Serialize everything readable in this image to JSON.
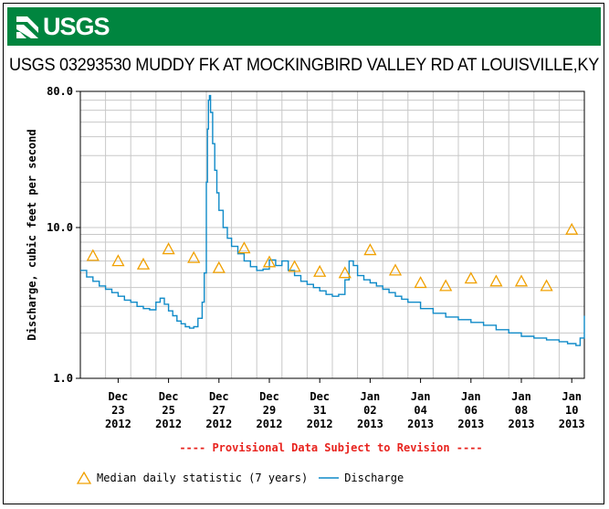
{
  "header": {
    "logo_text": "USGS",
    "logo_icon": "usgs-wave-icon",
    "banner_color": "#00853f"
  },
  "station_title": "USGS 03293530 MUDDY FK AT MOCKINGBIRD VALLEY RD AT LOUISVILLE,KY",
  "provisional_note": "---- Provisional Data Subject to Revision ----",
  "chart_data": {
    "type": "line",
    "title": "USGS 03293530 MUDDY FK AT MOCKINGBIRD VALLEY RD AT LOUISVILLE,KY",
    "ylabel": "Discharge, cubic feet per second",
    "xlabel": "",
    "yscale": "log",
    "ylim": [
      1.0,
      80.0
    ],
    "y_ticks": [
      {
        "value": 1.0,
        "label": "1.0"
      },
      {
        "value": 10.0,
        "label": "10.0"
      },
      {
        "value": 80.0,
        "label": "80.0"
      }
    ],
    "xlim": [
      "2012-12-22",
      "2013-01-11"
    ],
    "x_ticks": [
      {
        "date": "2012-12-23",
        "label1": "Dec",
        "label2": "23",
        "label3": "2012"
      },
      {
        "date": "2012-12-25",
        "label1": "Dec",
        "label2": "25",
        "label3": "2012"
      },
      {
        "date": "2012-12-27",
        "label1": "Dec",
        "label2": "27",
        "label3": "2012"
      },
      {
        "date": "2012-12-29",
        "label1": "Dec",
        "label2": "29",
        "label3": "2012"
      },
      {
        "date": "2012-12-31",
        "label1": "Dec",
        "label2": "31",
        "label3": "2012"
      },
      {
        "date": "2013-01-02",
        "label1": "Jan",
        "label2": "02",
        "label3": "2013"
      },
      {
        "date": "2013-01-04",
        "label1": "Jan",
        "label2": "04",
        "label3": "2013"
      },
      {
        "date": "2013-01-06",
        "label1": "Jan",
        "label2": "06",
        "label3": "2013"
      },
      {
        "date": "2013-01-08",
        "label1": "Jan",
        "label2": "08",
        "label3": "2013"
      },
      {
        "date": "2013-01-10",
        "label1": "Jan",
        "label2": "10",
        "label3": "2013"
      }
    ],
    "grid": true,
    "legend_position": "bottom",
    "series": [
      {
        "name": "Discharge",
        "color": "#0f8ac8",
        "x": [
          "2012-12-22T00:00",
          "2012-12-22T06:00",
          "2012-12-22T12:00",
          "2012-12-22T18:00",
          "2012-12-23T00:00",
          "2012-12-23T06:00",
          "2012-12-23T12:00",
          "2012-12-23T18:00",
          "2012-12-24T00:00",
          "2012-12-24T06:00",
          "2012-12-24T12:00",
          "2012-12-24T18:00",
          "2012-12-25T00:00",
          "2012-12-25T04:00",
          "2012-12-25T08:00",
          "2012-12-25T12:00",
          "2012-12-25T16:00",
          "2012-12-25T20:00",
          "2012-12-26T00:00",
          "2012-12-26T04:00",
          "2012-12-26T08:00",
          "2012-12-26T12:00",
          "2012-12-26T16:00",
          "2012-12-26T20:00",
          "2012-12-26T22:00",
          "2012-12-27T00:00",
          "2012-12-27T01:00",
          "2012-12-27T02:00",
          "2012-12-27T03:00",
          "2012-12-27T04:00",
          "2012-12-27T06:00",
          "2012-12-27T08:00",
          "2012-12-27T10:00",
          "2012-12-27T12:00",
          "2012-12-27T16:00",
          "2012-12-27T20:00",
          "2012-12-28T00:00",
          "2012-12-28T06:00",
          "2012-12-28T12:00",
          "2012-12-28T18:00",
          "2012-12-29T00:00",
          "2012-12-29T06:00",
          "2012-12-29T12:00",
          "2012-12-29T18:00",
          "2012-12-30T00:00",
          "2012-12-30T06:00",
          "2012-12-30T12:00",
          "2012-12-30T18:00",
          "2012-12-31T00:00",
          "2012-12-31T06:00",
          "2012-12-31T12:00",
          "2012-12-31T18:00",
          "2013-01-01T00:00",
          "2013-01-01T06:00",
          "2013-01-01T12:00",
          "2013-01-01T16:00",
          "2013-01-01T20:00",
          "2013-01-02T00:00",
          "2013-01-02T06:00",
          "2013-01-02T12:00",
          "2013-01-02T18:00",
          "2013-01-03T00:00",
          "2013-01-03T06:00",
          "2013-01-03T12:00",
          "2013-01-03T18:00",
          "2013-01-04T00:00",
          "2013-01-04T12:00",
          "2013-01-05T00:00",
          "2013-01-05T12:00",
          "2013-01-06T00:00",
          "2013-01-06T12:00",
          "2013-01-07T00:00",
          "2013-01-07T12:00",
          "2013-01-08T00:00",
          "2013-01-08T12:00",
          "2013-01-09T00:00",
          "2013-01-09T12:00",
          "2013-01-10T00:00",
          "2013-01-10T08:00",
          "2013-01-10T16:00",
          "2013-01-10T20:00",
          "2013-01-11T00:00"
        ],
        "y": [
          5.2,
          4.7,
          4.4,
          4.1,
          3.9,
          3.7,
          3.5,
          3.3,
          3.2,
          3.0,
          2.9,
          2.85,
          3.2,
          3.4,
          3.1,
          2.8,
          2.6,
          2.4,
          2.3,
          2.2,
          2.15,
          2.2,
          2.5,
          3.2,
          5.0,
          20.0,
          45.0,
          70.0,
          75.0,
          58.0,
          36.0,
          24.0,
          17.0,
          13.0,
          10.0,
          8.5,
          7.5,
          6.7,
          6.0,
          5.5,
          5.2,
          5.3,
          6.1,
          5.6,
          6.0,
          5.2,
          4.8,
          4.4,
          4.2,
          4.0,
          3.8,
          3.6,
          3.5,
          3.6,
          4.5,
          6.0,
          5.6,
          4.8,
          4.5,
          4.3,
          4.1,
          3.9,
          3.7,
          3.5,
          3.35,
          3.2,
          2.9,
          2.7,
          2.55,
          2.45,
          2.35,
          2.25,
          2.1,
          2.0,
          1.9,
          1.85,
          1.8,
          1.75,
          1.7,
          1.65,
          1.85,
          2.6
        ]
      },
      {
        "name": "Median daily statistic (7 years)",
        "color": "#f0a000",
        "marker": "triangle",
        "x": [
          "2012-12-22",
          "2012-12-23",
          "2012-12-24",
          "2012-12-25",
          "2012-12-26",
          "2012-12-27",
          "2012-12-28",
          "2012-12-29",
          "2012-12-30",
          "2012-12-31",
          "2013-01-01",
          "2013-01-02",
          "2013-01-03",
          "2013-01-04",
          "2013-01-05",
          "2013-01-06",
          "2013-01-07",
          "2013-01-08",
          "2013-01-09",
          "2013-01-10"
        ],
        "y": [
          6.5,
          6.0,
          5.7,
          7.2,
          6.3,
          5.4,
          7.3,
          5.9,
          5.5,
          5.1,
          5.0,
          7.1,
          5.2,
          4.3,
          4.1,
          4.6,
          4.4,
          4.4,
          4.1,
          9.7
        ]
      }
    ]
  },
  "legend": [
    {
      "label": "Median daily statistic (7 years)",
      "icon": "triangle-icon",
      "color": "#f0a000"
    },
    {
      "label": "Discharge",
      "icon": "line-icon",
      "color": "#0f8ac8"
    }
  ]
}
